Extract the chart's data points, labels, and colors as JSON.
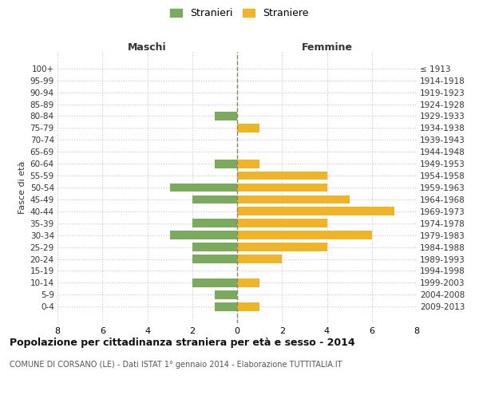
{
  "age_groups": [
    "0-4",
    "5-9",
    "10-14",
    "15-19",
    "20-24",
    "25-29",
    "30-34",
    "35-39",
    "40-44",
    "45-49",
    "50-54",
    "55-59",
    "60-64",
    "65-69",
    "70-74",
    "75-79",
    "80-84",
    "85-89",
    "90-94",
    "95-99",
    "100+"
  ],
  "birth_years": [
    "2009-2013",
    "2004-2008",
    "1999-2003",
    "1994-1998",
    "1989-1993",
    "1984-1988",
    "1979-1983",
    "1974-1978",
    "1969-1973",
    "1964-1968",
    "1959-1963",
    "1954-1958",
    "1949-1953",
    "1944-1948",
    "1939-1943",
    "1934-1938",
    "1929-1933",
    "1924-1928",
    "1919-1923",
    "1914-1918",
    "≤ 1913"
  ],
  "maschi": [
    1,
    1,
    2,
    0,
    2,
    2,
    3,
    2,
    0,
    2,
    3,
    0,
    1,
    0,
    0,
    0,
    1,
    0,
    0,
    0,
    0
  ],
  "femmine": [
    1,
    0,
    1,
    0,
    2,
    4,
    6,
    4,
    7,
    5,
    4,
    4,
    1,
    0,
    0,
    1,
    0,
    0,
    0,
    0,
    0
  ],
  "color_maschi": "#7aaa5b",
  "color_femmine": "#f0b429",
  "bg_color": "#ffffff",
  "grid_color": "#c8c8c8",
  "center_line_color": "#888866",
  "title": "Popolazione per cittadinanza straniera per età e sesso - 2014",
  "subtitle": "COMUNE DI CORSANO (LE) - Dati ISTAT 1° gennaio 2014 - Elaborazione TUTTITALIA.IT",
  "ylabel_left": "Fasce di età",
  "label_maschi": "Stranieri",
  "label_femmine": "Straniere",
  "xlim": 8,
  "header_maschi": "Maschi",
  "header_femmine": "Femmine"
}
